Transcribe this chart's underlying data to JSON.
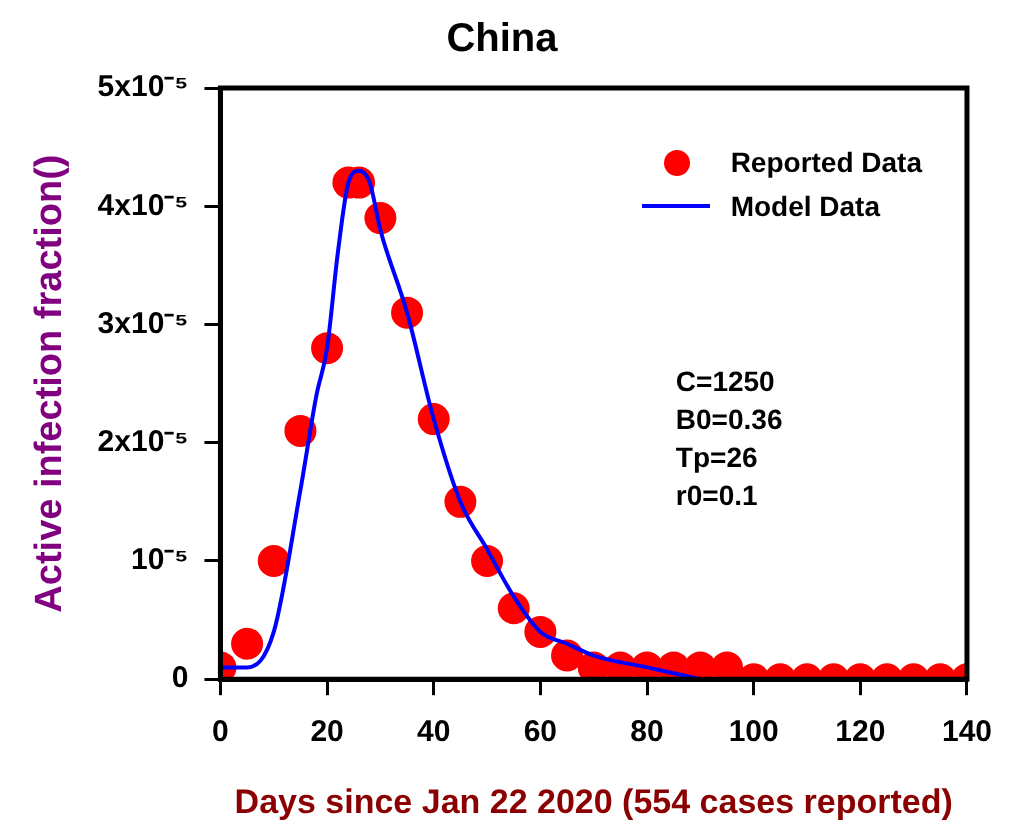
{
  "chart_data": {
    "type": "scatter",
    "title": "China",
    "xlabel": "Days since Jan 22 2020 (554 cases reported)",
    "ylabel": "Active infection fraction()",
    "xlim": [
      0,
      140
    ],
    "xticks": [
      0,
      20,
      40,
      60,
      80,
      100,
      120,
      140
    ],
    "ylim": [
      0,
      5e-05
    ],
    "yticks": [
      0,
      {
        "value": 1e-05,
        "label": "10⁻⁵"
      },
      {
        "value": 2e-05,
        "label": "2x10⁻⁵"
      },
      {
        "value": 3e-05,
        "label": "3x10⁻⁵"
      },
      {
        "value": 4e-05,
        "label": "4x10⁻⁵"
      },
      {
        "value": 5e-05,
        "label": "5x10⁻⁵"
      }
    ],
    "grid": false,
    "legend": "top right",
    "annotations": [
      "C=1250",
      "B0=0.36",
      "Tp=26",
      "r0=0.1"
    ],
    "series": [
      {
        "name": "Reported Data",
        "type": "scatter",
        "marker": "circle",
        "color": "#ff0000",
        "x": [
          0,
          5,
          10,
          15,
          20,
          24,
          26,
          30,
          35,
          40,
          45,
          50,
          55,
          60,
          65,
          70,
          75,
          80,
          85,
          90,
          95,
          100,
          105,
          110,
          115,
          120,
          125,
          130,
          135,
          140
        ],
        "values": [
          1e-06,
          3e-06,
          1e-05,
          2.1e-05,
          2.8e-05,
          4.2e-05,
          4.2e-05,
          3.9e-05,
          3.1e-05,
          2.2e-05,
          1.5e-05,
          1e-05,
          6e-06,
          4e-06,
          2e-06,
          1e-06,
          1e-06,
          1e-06,
          1e-06,
          1e-06,
          1e-06,
          0,
          0,
          0,
          0,
          0,
          0,
          0,
          0,
          0
        ]
      },
      {
        "name": "Model Data",
        "type": "line",
        "marker": "none",
        "line_style": "solid",
        "color": "#0000ff",
        "x": [
          0,
          5,
          10,
          15,
          18,
          20,
          22,
          24,
          26,
          28,
          30,
          35,
          40,
          45,
          50,
          55,
          60,
          65,
          70,
          80,
          90
        ],
        "values": [
          1e-06,
          1e-06,
          4e-06,
          1.6e-05,
          2.4e-05,
          2.8e-05,
          3.6e-05,
          4.2e-05,
          4.3e-05,
          4.2e-05,
          3.8e-05,
          3.1e-05,
          2.2e-05,
          1.5e-05,
          1.1e-05,
          7e-06,
          4e-06,
          3e-06,
          2e-06,
          1e-06,
          0
        ]
      }
    ]
  }
}
